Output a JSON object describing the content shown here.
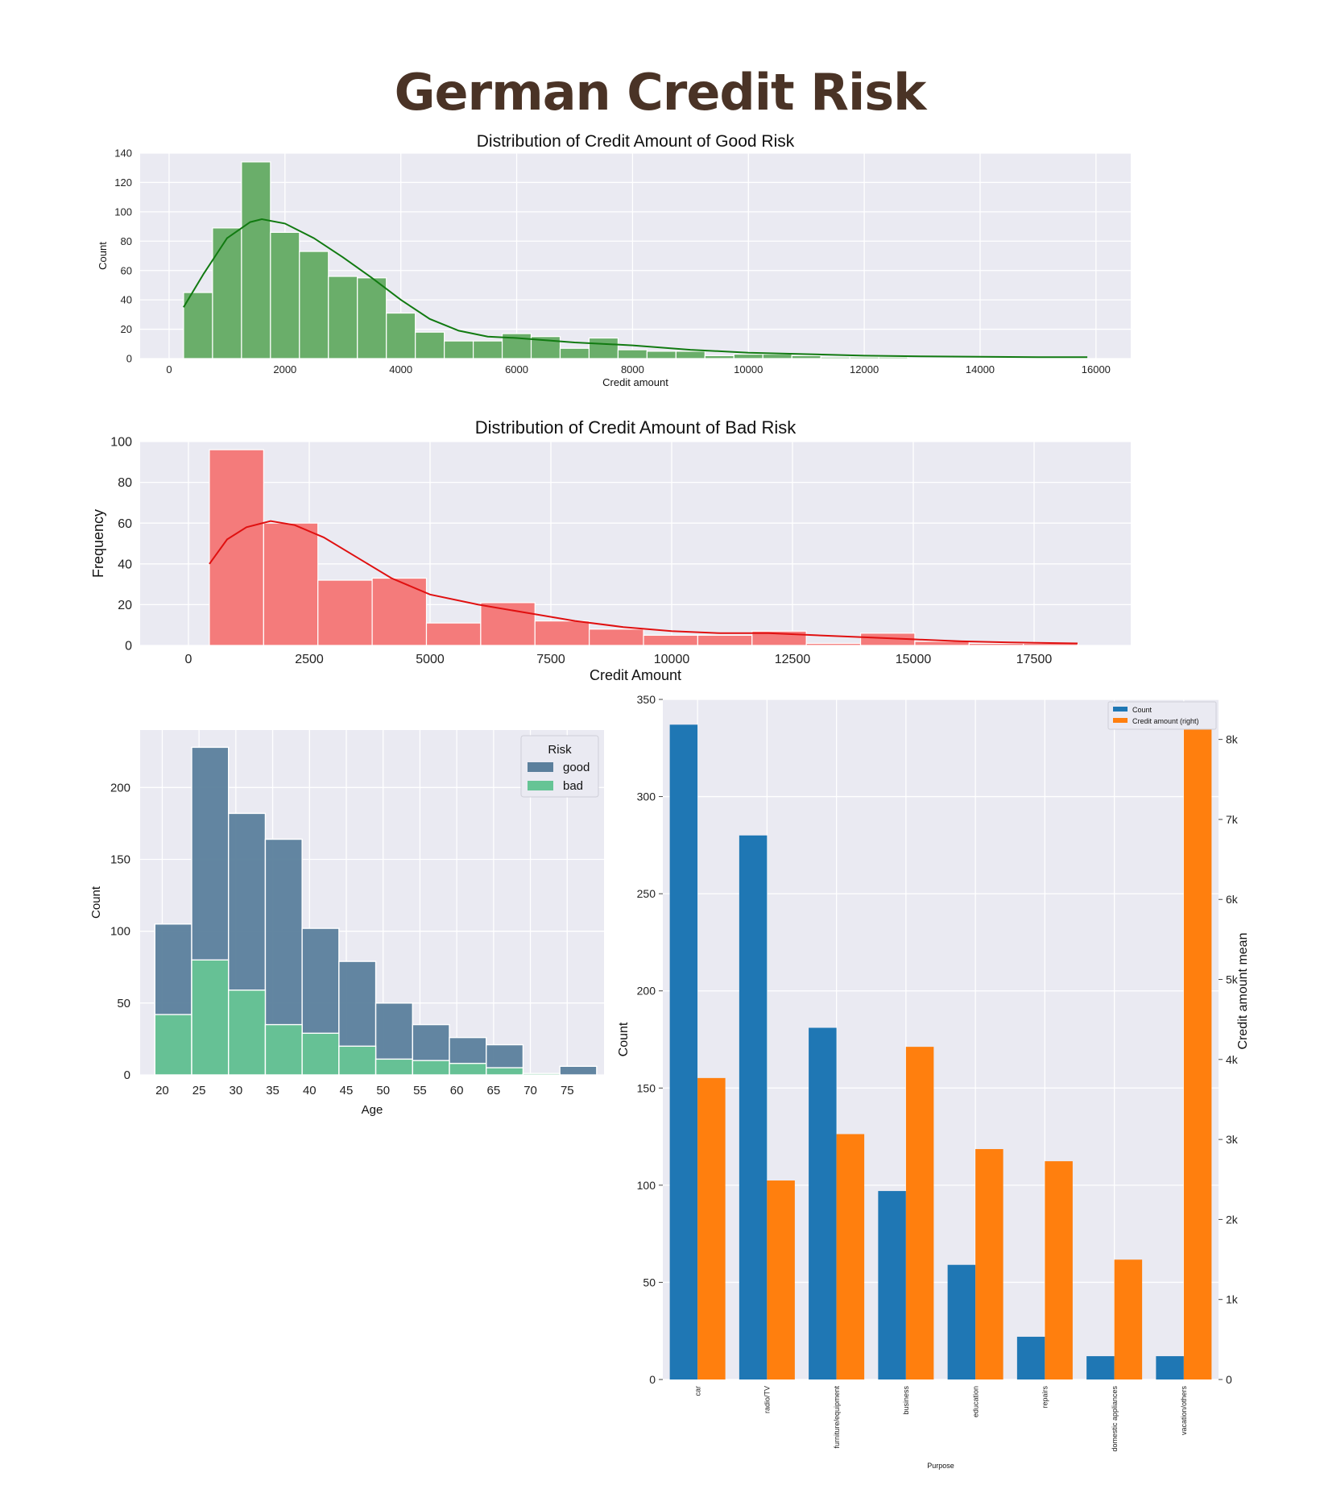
{
  "page": {
    "title": "German Credit Risk"
  },
  "chart_data": [
    {
      "id": "good",
      "type": "bar",
      "title": "Distribution of Credit Amount of Good Risk",
      "xlabel": "Credit amount",
      "ylabel": "Count",
      "xlim": [
        -500,
        16600
      ],
      "ylim": [
        0,
        140
      ],
      "xticks": [
        0,
        2000,
        4000,
        6000,
        8000,
        10000,
        12000,
        14000,
        16000
      ],
      "yticks": [
        0,
        20,
        40,
        60,
        80,
        100,
        120,
        140
      ],
      "bin_start": 250,
      "bin_width": 500,
      "counts": [
        45,
        89,
        134,
        86,
        73,
        56,
        55,
        31,
        18,
        12,
        12,
        17,
        15,
        7,
        14,
        6,
        5,
        5,
        2,
        3,
        3,
        2,
        1,
        1,
        1
      ],
      "kde": [
        [
          250,
          35
        ],
        [
          600,
          58
        ],
        [
          1000,
          82
        ],
        [
          1400,
          93
        ],
        [
          1600,
          95
        ],
        [
          2000,
          92
        ],
        [
          2500,
          82
        ],
        [
          3000,
          69
        ],
        [
          3500,
          55
        ],
        [
          4000,
          40
        ],
        [
          4500,
          27
        ],
        [
          5000,
          19
        ],
        [
          5500,
          15
        ],
        [
          6000,
          14
        ],
        [
          7000,
          11
        ],
        [
          8000,
          9
        ],
        [
          9000,
          6
        ],
        [
          10000,
          4
        ],
        [
          11000,
          3
        ],
        [
          12000,
          2
        ],
        [
          13000,
          1.5
        ],
        [
          14000,
          1.2
        ],
        [
          15000,
          1
        ],
        [
          15850,
          1
        ]
      ],
      "bar_color": "#6aae6a",
      "line_color": "#117a11"
    },
    {
      "id": "bad",
      "type": "bar",
      "title": "Distribution of Credit Amount of Bad Risk",
      "xlabel": "Credit Amount",
      "ylabel": "Frequency",
      "xlim": [
        -1000,
        19500
      ],
      "ylim": [
        0,
        100
      ],
      "xticks": [
        0,
        2500,
        5000,
        7500,
        10000,
        12500,
        15000,
        17500
      ],
      "yticks": [
        0,
        20,
        40,
        60,
        80,
        100
      ],
      "bin_start": 433,
      "bin_width": 1123,
      "counts": [
        96,
        60,
        32,
        33,
        11,
        21,
        12,
        8,
        5,
        5,
        7,
        1,
        6,
        2,
        1,
        1
      ],
      "kde": [
        [
          433,
          40
        ],
        [
          800,
          52
        ],
        [
          1200,
          58
        ],
        [
          1700,
          61
        ],
        [
          2200,
          59
        ],
        [
          2800,
          53
        ],
        [
          3500,
          43
        ],
        [
          4200,
          33
        ],
        [
          5000,
          25
        ],
        [
          6000,
          20
        ],
        [
          7000,
          16
        ],
        [
          8000,
          12
        ],
        [
          9000,
          9
        ],
        [
          10000,
          7
        ],
        [
          11000,
          6
        ],
        [
          12000,
          6
        ],
        [
          13000,
          5
        ],
        [
          14000,
          4
        ],
        [
          15000,
          3
        ],
        [
          16000,
          2
        ],
        [
          17000,
          1.5
        ],
        [
          18400,
          1
        ]
      ],
      "bar_color": "#f47b7b",
      "line_color": "#e01010"
    },
    {
      "id": "age",
      "type": "bar",
      "stacked": false,
      "title": "",
      "xlabel": "Age",
      "ylabel": "Count",
      "xlim": [
        17,
        80
      ],
      "ylim": [
        0,
        240
      ],
      "xticks": [
        20,
        25,
        30,
        35,
        40,
        45,
        50,
        55,
        60,
        65,
        70,
        75
      ],
      "yticks": [
        0,
        50,
        100,
        150,
        200
      ],
      "bin_start": 19,
      "bin_width": 5,
      "legend_title": "Risk",
      "legend_position": "top-right",
      "series": [
        {
          "name": "good",
          "color": "#5b7f9c",
          "values": [
            105,
            228,
            182,
            164,
            102,
            79,
            50,
            35,
            26,
            21,
            0,
            6
          ]
        },
        {
          "name": "bad",
          "color": "#66c495",
          "values": [
            42,
            80,
            59,
            35,
            29,
            20,
            11,
            10,
            8,
            5,
            1,
            0
          ]
        }
      ]
    },
    {
      "id": "purpose",
      "type": "bar",
      "title": "",
      "xlabel": "Purpose",
      "ylabel": "Count",
      "ylabel_right": "Credit amount mean",
      "categories": [
        "car",
        "radio/TV",
        "furniture/equipment",
        "business",
        "education",
        "repairs",
        "domestic appliances",
        "vacation/others"
      ],
      "ylim": [
        0,
        350
      ],
      "ylim_right": [
        0,
        8500
      ],
      "yticks": [
        0,
        50,
        100,
        150,
        200,
        250,
        300,
        350
      ],
      "yticks_right": [
        0,
        1000,
        2000,
        3000,
        4000,
        5000,
        6000,
        7000,
        8000
      ],
      "ytick_labels_right": [
        "0",
        "1k",
        "2k",
        "3k",
        "4k",
        "5k",
        "6k",
        "7k",
        "8k"
      ],
      "legend_position": "top-right",
      "series": [
        {
          "name": "Count",
          "color": "#1f77b4",
          "values": [
            337,
            280,
            181,
            97,
            59,
            22,
            12,
            12
          ]
        },
        {
          "name": "Credit amount (right)",
          "color": "#ff7f0e",
          "values": [
            3768,
            2487,
            3067,
            4158,
            2880,
            2728,
            1498,
            8209
          ]
        }
      ]
    }
  ]
}
